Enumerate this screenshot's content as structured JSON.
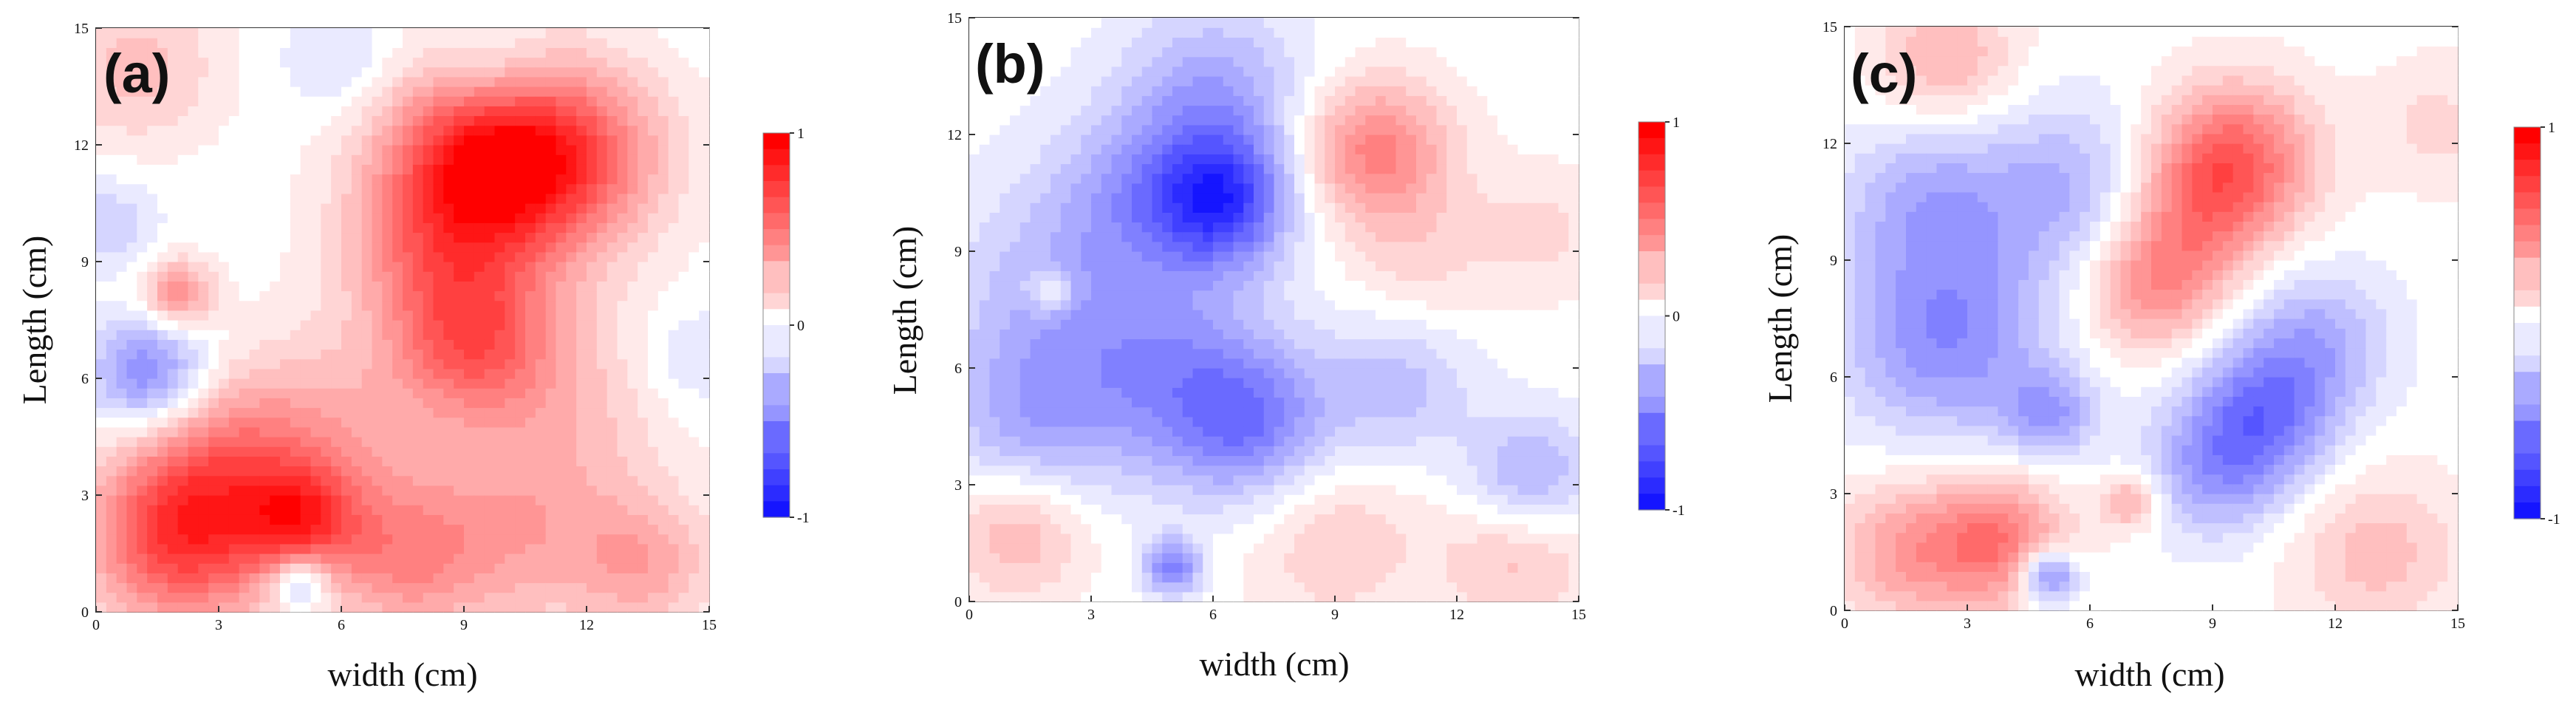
{
  "chart_data": [
    {
      "type": "heatmap",
      "panel_label": "(a)",
      "xlabel": "width (cm)",
      "ylabel": "Length (cm)",
      "xlim": [
        0,
        15
      ],
      "ylim": [
        0,
        15
      ],
      "x_ticks": [
        "0",
        "3",
        "6",
        "9",
        "12",
        "15"
      ],
      "y_ticks": [
        "0",
        "3",
        "6",
        "9",
        "12",
        "15"
      ],
      "colorbar": {
        "min": -1,
        "max": 1,
        "tick_labels": [
          "1",
          "0",
          "-1"
        ],
        "low_color": "#0000ff",
        "mid_color": "#ffffff",
        "high_color": "#ff0000"
      },
      "features": [
        {
          "x": 9.7,
          "y": 11.5,
          "value": 1.0,
          "spread": 1.8
        },
        {
          "x": 12.0,
          "y": 11.8,
          "value": 0.35,
          "spread": 1.6
        },
        {
          "x": 9.2,
          "y": 7.0,
          "value": 0.55,
          "spread": 1.4
        },
        {
          "x": 8.0,
          "y": 9.2,
          "value": 0.3,
          "spread": 1.5
        },
        {
          "x": 2.1,
          "y": 1.9,
          "value": 0.75,
          "spread": 1.6
        },
        {
          "x": 5.0,
          "y": 2.4,
          "value": 0.55,
          "spread": 1.0
        },
        {
          "x": 7.5,
          "y": 1.4,
          "value": 0.4,
          "spread": 1.4
        },
        {
          "x": 10.5,
          "y": 2.0,
          "value": 0.3,
          "spread": 1.8
        },
        {
          "x": 13.5,
          "y": 1.2,
          "value": 0.3,
          "spread": 1.2
        },
        {
          "x": 5.5,
          "y": 4.5,
          "value": 0.3,
          "spread": 1.8
        },
        {
          "x": 3.0,
          "y": 4.0,
          "value": 0.3,
          "spread": 1.5
        },
        {
          "x": 2.0,
          "y": 8.2,
          "value": 0.45,
          "spread": 0.6
        },
        {
          "x": 1.0,
          "y": 14.0,
          "value": 0.25,
          "spread": 1.4
        },
        {
          "x": 11.5,
          "y": 5.5,
          "value": 0.2,
          "spread": 2.0
        },
        {
          "x": 1.3,
          "y": 6.1,
          "value": -0.5,
          "spread": 1.0
        },
        {
          "x": 5.0,
          "y": 0.8,
          "value": -0.45,
          "spread": 0.5
        },
        {
          "x": 9.8,
          "y": 13.8,
          "value": -0.2,
          "spread": 1.0
        },
        {
          "x": 6.0,
          "y": 14.2,
          "value": -0.15,
          "spread": 1.0
        },
        {
          "x": 14.5,
          "y": 6.5,
          "value": -0.15,
          "spread": 1.0
        },
        {
          "x": 0.3,
          "y": 10.0,
          "value": -0.2,
          "spread": 0.8
        }
      ]
    },
    {
      "type": "heatmap",
      "panel_label": "(b)",
      "xlabel": "width (cm)",
      "ylabel": "Length (cm)",
      "xlim": [
        0,
        15
      ],
      "ylim": [
        0,
        15
      ],
      "x_ticks": [
        "0",
        "3",
        "6",
        "9",
        "12",
        "15"
      ],
      "y_ticks": [
        "0",
        "3",
        "6",
        "9",
        "12",
        "15"
      ],
      "colorbar": {
        "min": -1,
        "max": 1,
        "tick_labels": [
          "1",
          "0",
          "-1"
        ],
        "low_color": "#0000ff",
        "mid_color": "#ffffff",
        "high_color": "#ff0000"
      },
      "features": [
        {
          "x": 6.2,
          "y": 10.3,
          "value": -0.7,
          "spread": 1.2
        },
        {
          "x": 6.0,
          "y": 13.0,
          "value": -0.35,
          "spread": 1.6
        },
        {
          "x": 2.5,
          "y": 7.5,
          "value": -0.3,
          "spread": 2.2
        },
        {
          "x": 4.0,
          "y": 10.5,
          "value": -0.25,
          "spread": 1.5
        },
        {
          "x": 5.5,
          "y": 5.5,
          "value": -0.35,
          "spread": 1.8
        },
        {
          "x": 7.0,
          "y": 4.5,
          "value": -0.35,
          "spread": 1.3
        },
        {
          "x": 1.5,
          "y": 4.5,
          "value": -0.25,
          "spread": 1.5
        },
        {
          "x": 10.5,
          "y": 5.5,
          "value": -0.25,
          "spread": 1.3
        },
        {
          "x": 13.8,
          "y": 3.2,
          "value": -0.35,
          "spread": 1.1
        },
        {
          "x": 5.0,
          "y": 0.9,
          "value": -0.5,
          "spread": 0.5
        },
        {
          "x": 10.0,
          "y": 11.6,
          "value": 0.5,
          "spread": 1.3
        },
        {
          "x": 14.0,
          "y": 9.5,
          "value": 0.15,
          "spread": 1.2
        },
        {
          "x": 1.2,
          "y": 1.8,
          "value": 0.3,
          "spread": 1.2
        },
        {
          "x": 9.0,
          "y": 1.5,
          "value": 0.2,
          "spread": 1.5
        },
        {
          "x": 13.5,
          "y": 1.2,
          "value": 0.25,
          "spread": 1.3
        },
        {
          "x": 2.0,
          "y": 8.0,
          "value": 0.3,
          "spread": 0.4
        },
        {
          "x": 11.0,
          "y": 8.8,
          "value": 0.15,
          "spread": 1.2
        }
      ]
    },
    {
      "type": "heatmap",
      "panel_label": "(c)",
      "xlabel": "width (cm)",
      "ylabel": "Length (cm)",
      "xlim": [
        0,
        15
      ],
      "ylim": [
        0,
        15
      ],
      "x_ticks": [
        "0",
        "3",
        "6",
        "9",
        "12",
        "15"
      ],
      "y_ticks": [
        "0",
        "3",
        "6",
        "9",
        "12",
        "15"
      ],
      "colorbar": {
        "min": -1,
        "max": 1,
        "tick_labels": [
          "1",
          "-1"
        ],
        "low_color": "#0000ff",
        "mid_color": "#ffffff",
        "high_color": "#ff0000"
      },
      "features": [
        {
          "x": 9.5,
          "y": 11.6,
          "value": 0.6,
          "spread": 1.4
        },
        {
          "x": 7.5,
          "y": 8.3,
          "value": 0.4,
          "spread": 1.2
        },
        {
          "x": 8.5,
          "y": 10.0,
          "value": 0.3,
          "spread": 1.3
        },
        {
          "x": 2.5,
          "y": 7.0,
          "value": -0.45,
          "spread": 1.8
        },
        {
          "x": 2.0,
          "y": 10.5,
          "value": -0.3,
          "spread": 1.5
        },
        {
          "x": 5.5,
          "y": 10.8,
          "value": -0.3,
          "spread": 1.6
        },
        {
          "x": 10.2,
          "y": 5.0,
          "value": -0.5,
          "spread": 1.3
        },
        {
          "x": 11.5,
          "y": 7.0,
          "value": -0.3,
          "spread": 1.3
        },
        {
          "x": 5.0,
          "y": 5.0,
          "value": -0.35,
          "spread": 0.8
        },
        {
          "x": 9.0,
          "y": 3.5,
          "value": -0.3,
          "spread": 1.2
        },
        {
          "x": 5.0,
          "y": 0.9,
          "value": -0.6,
          "spread": 0.5
        },
        {
          "x": 3.8,
          "y": 1.8,
          "value": 0.5,
          "spread": 1.2
        },
        {
          "x": 1.5,
          "y": 1.5,
          "value": 0.35,
          "spread": 1.3
        },
        {
          "x": 2.5,
          "y": 14.2,
          "value": 0.3,
          "spread": 1.2
        },
        {
          "x": 13.0,
          "y": 1.5,
          "value": 0.25,
          "spread": 1.5
        },
        {
          "x": 7.0,
          "y": 2.8,
          "value": 0.35,
          "spread": 0.5
        },
        {
          "x": 14.5,
          "y": 12.5,
          "value": 0.15,
          "spread": 1.2
        }
      ]
    }
  ]
}
